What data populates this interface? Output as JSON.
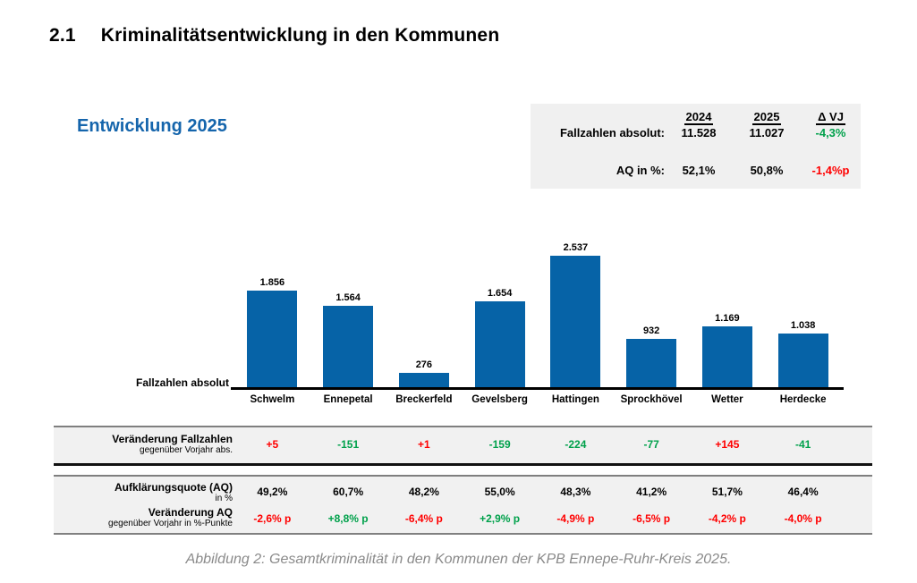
{
  "page": {
    "heading_number": "2.1",
    "heading_text": "Kriminalitätsentwicklung in den Kommunen",
    "chart_heading": "Entwicklung 2025",
    "caption": "Abbildung 2: Gesamtkriminalität in den Kommunen der KPB Ennepe-Ruhr-Kreis 2025."
  },
  "summary_box": {
    "col_headers": [
      "2024",
      "2025",
      "Δ VJ"
    ],
    "rows": [
      {
        "label": "Fallzahlen absolut:",
        "values": [
          "11.528",
          "11.027",
          "-4,3%"
        ],
        "value_colors": [
          "black",
          "black",
          "green"
        ]
      },
      {
        "label": "AQ in %:",
        "values": [
          "52,1%",
          "50,8%",
          "-1,4%p"
        ],
        "value_colors": [
          "black",
          "black",
          "red"
        ]
      }
    ]
  },
  "chart_data": {
    "type": "bar",
    "title": "Entwicklung 2025",
    "xlabel": "",
    "ylabel": "Fallzahlen absolut",
    "categories": [
      "Schwelm",
      "Ennepetal",
      "Breckerfeld",
      "Gevelsberg",
      "Hattingen",
      "Sprockhövel",
      "Wetter",
      "Herdecke"
    ],
    "values": [
      1856,
      1564,
      276,
      1654,
      2537,
      932,
      1169,
      1038
    ],
    "value_labels": [
      "1.856",
      "1.564",
      "276",
      "1.654",
      "2.537",
      "932",
      "1.169",
      "1.038"
    ],
    "bar_color": "#0663A7",
    "ylim": [
      0,
      2700
    ],
    "grid": false,
    "legend": "none"
  },
  "change_table": {
    "label": "Veränderung Fallzahlen",
    "sublabel": "gegenüber Vorjahr abs.",
    "values": [
      "+5",
      "-151",
      "+1",
      "-159",
      "-224",
      "-77",
      "+145",
      "-41"
    ],
    "value_colors": [
      "red",
      "green",
      "red",
      "green",
      "green",
      "green",
      "red",
      "green"
    ]
  },
  "aq_table": {
    "row1_label": "Aufklärungsquote (AQ)",
    "row1_sublabel": "in %",
    "row1_values": [
      "49,2%",
      "60,7%",
      "48,2%",
      "55,0%",
      "48,3%",
      "41,2%",
      "51,7%",
      "46,4%"
    ],
    "row2_label": "Veränderung AQ",
    "row2_sublabel": "gegenüber Vorjahr in %-Punkte",
    "row2_values": [
      "-2,6% p",
      "+8,8% p",
      "-6,4% p",
      "+2,9% p",
      "-4,9% p",
      "-6,5% p",
      "-4,2% p",
      "-4,0% p"
    ],
    "row2_colors": [
      "red",
      "green",
      "red",
      "green",
      "red",
      "red",
      "red",
      "red"
    ]
  },
  "colors": {
    "bar_blue": "#0663A7",
    "heading_blue": "#1565AC",
    "positive_green": "#00A14B",
    "negative_red": "#FF0000",
    "caption_gray": "#8a8a8a"
  }
}
